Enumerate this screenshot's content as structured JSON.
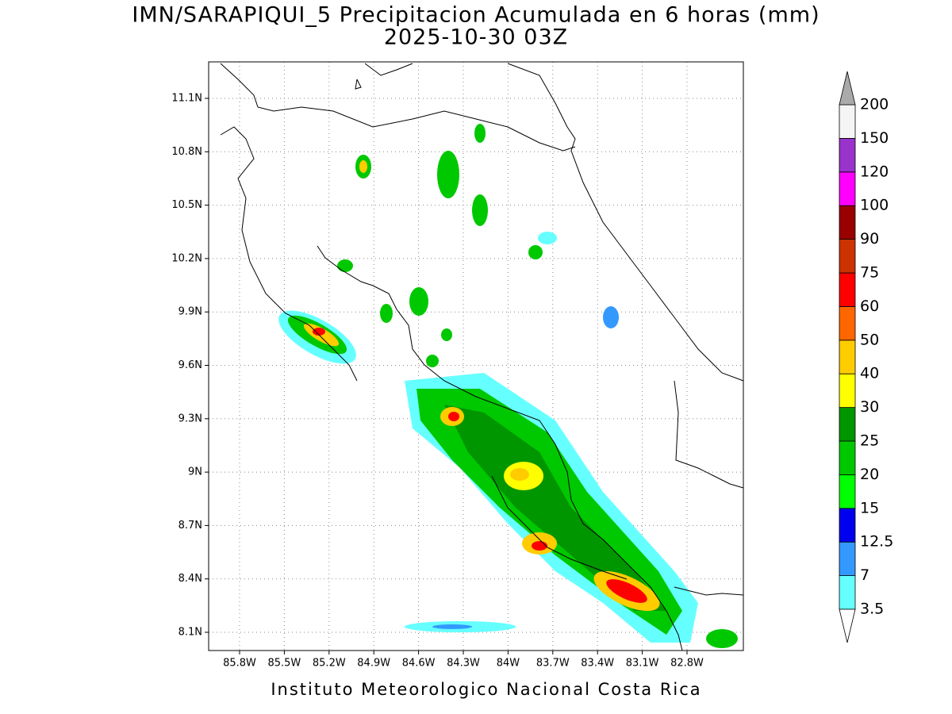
{
  "title": "IMN/SARAPIQUI_5 Precipitacion Acumulada en 6 horas (mm)",
  "subtitle": "2025-10-30 03Z",
  "lat_labels": [
    "11.1N",
    "10.8N",
    "10.5N",
    "10.2N",
    "9.9N",
    "9.6N",
    "9.3N",
    "9N",
    "8.7N",
    "8.4N",
    "8.1N"
  ],
  "lon_labels": [
    "85.8W",
    "85.5W",
    "85.2W",
    "84.9W",
    "84.6W",
    "84.3W",
    "84W",
    "83.7W",
    "83.4W",
    "83.1W",
    "82.8W"
  ],
  "colorbar": {
    "levels": [
      "3.5",
      "7",
      "12.5",
      "15",
      "20",
      "25",
      "30",
      "40",
      "50",
      "60",
      "75",
      "90",
      "100",
      "120",
      "150",
      "200"
    ],
    "colors": [
      "#66ffff",
      "#3399ff",
      "#0000ee",
      "#00ff00",
      "#00c800",
      "#009600",
      "#ffff00",
      "#ffcc00",
      "#ff6600",
      "#ff0000",
      "#cc3300",
      "#990000",
      "#ff00ff",
      "#9933cc",
      "#f5f5f5"
    ],
    "below_color": "#ffffff",
    "above_color": "#aaaaaa"
  },
  "footer": "Instituto Meteorologico Nacional Costa Rica"
}
